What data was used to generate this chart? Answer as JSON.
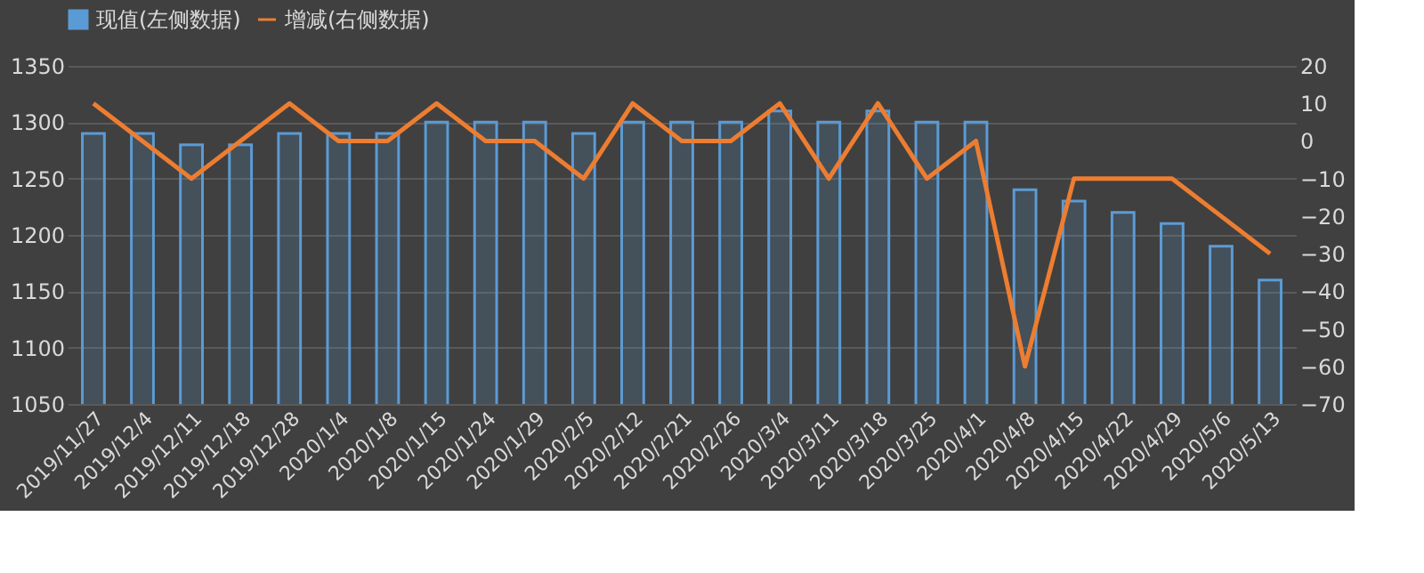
{
  "chart_data": {
    "type": "bar",
    "categories": [
      "2019/11/27",
      "2019/12/4",
      "2019/12/11",
      "2019/12/18",
      "2019/12/28",
      "2020/1/4",
      "2020/1/8",
      "2020/1/15",
      "2020/1/24",
      "2020/1/29",
      "2020/2/5",
      "2020/2/12",
      "2020/2/21",
      "2020/2/26",
      "2020/3/4",
      "2020/3/11",
      "2020/3/18",
      "2020/3/25",
      "2020/4/1",
      "2020/4/8",
      "2020/4/15",
      "2020/4/22",
      "2020/4/29",
      "2020/5/6",
      "2020/5/13"
    ],
    "series": [
      {
        "name": "现值(左侧数据)",
        "color": "#5b9bd5",
        "values": [
          1290,
          1290,
          1280,
          1280,
          1290,
          1290,
          1290,
          1300,
          1300,
          1300,
          1290,
          1300,
          1300,
          1300,
          1310,
          1300,
          1310,
          1300,
          1300,
          1240,
          1230,
          1220,
          1210,
          1190,
          1160
        ]
      },
      {
        "name": "增减(右侧数据)",
        "type": "line",
        "axis": "y2",
        "color": "#ed7d31",
        "values": [
          10,
          0,
          -10,
          0,
          10,
          0,
          0,
          10,
          0,
          0,
          -10,
          10,
          0,
          0,
          10,
          -10,
          10,
          -10,
          0,
          -60,
          -10,
          -10,
          -10,
          -20,
          -30
        ]
      }
    ],
    "ylim": [
      1050,
      1350
    ],
    "yticks": [
      1050,
      1100,
      1150,
      1200,
      1250,
      1300,
      1350
    ],
    "y2lim": [
      -70,
      20
    ],
    "y2ticks": [
      -70,
      -60,
      -50,
      -40,
      -30,
      -20,
      -10,
      0,
      10,
      20
    ],
    "grid": "y",
    "legend": "top",
    "line_style": "solid",
    "marker": "none"
  }
}
